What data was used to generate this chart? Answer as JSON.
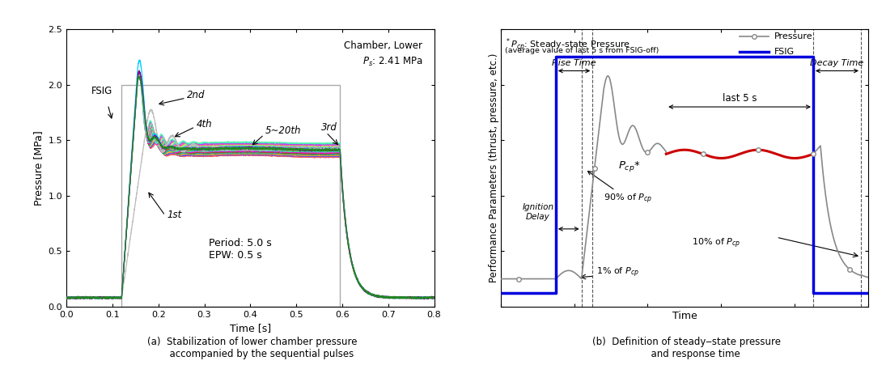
{
  "fig_width": 10.95,
  "fig_height": 4.51,
  "dpi": 100,
  "panel_a": {
    "xlabel": "Time [s]",
    "ylabel": "Pressure [MPa]",
    "xlim": [
      0.0,
      0.8
    ],
    "ylim": [
      0.0,
      2.5
    ],
    "xticks": [
      0.0,
      0.1,
      0.2,
      0.3,
      0.4,
      0.5,
      0.6,
      0.7,
      0.8
    ],
    "yticks": [
      0.0,
      0.5,
      1.0,
      1.5,
      2.0,
      2.5
    ],
    "annotation_chamber": "Chamber, Lower",
    "annotation_ps": "$P_s$: 2.41 MPa",
    "annotation_period": "Period: 5.0 s\nEPW: 0.5 s",
    "fsig_label": "FSIG",
    "fsig_box_color": "#aaaaaa",
    "steady_level": 1.42,
    "baseline": 0.08,
    "t_on": 0.12,
    "t_peak": 0.155,
    "t_off": 0.595
  },
  "panel_b": {
    "xlabel": "Time",
    "ylabel": "Performance Parameters (thrust, pressure, etc.)",
    "fsig_color": "#0000dd",
    "pressure_color": "#888888",
    "steady_line_color": "#cc0000",
    "legend_pressure": "Pressure",
    "legend_fsig": "FSIG",
    "title_line1": "$^*P_{cp}$: Steady-state Pressure",
    "title_line2": "(average value of last 5 s from FSIG-off)",
    "annotation_rise": "Rise Time",
    "annotation_decay": "Decay Time",
    "annotation_last5": "last 5 s",
    "annotation_ign": "Ignition\nDelay",
    "annotation_pcp": "$P_{cp}$*",
    "annotation_90": "90% of $P_{cp}$",
    "annotation_10": "10% of $P_{cp}$",
    "annotation_1": "1% of $P_{cp}$"
  }
}
